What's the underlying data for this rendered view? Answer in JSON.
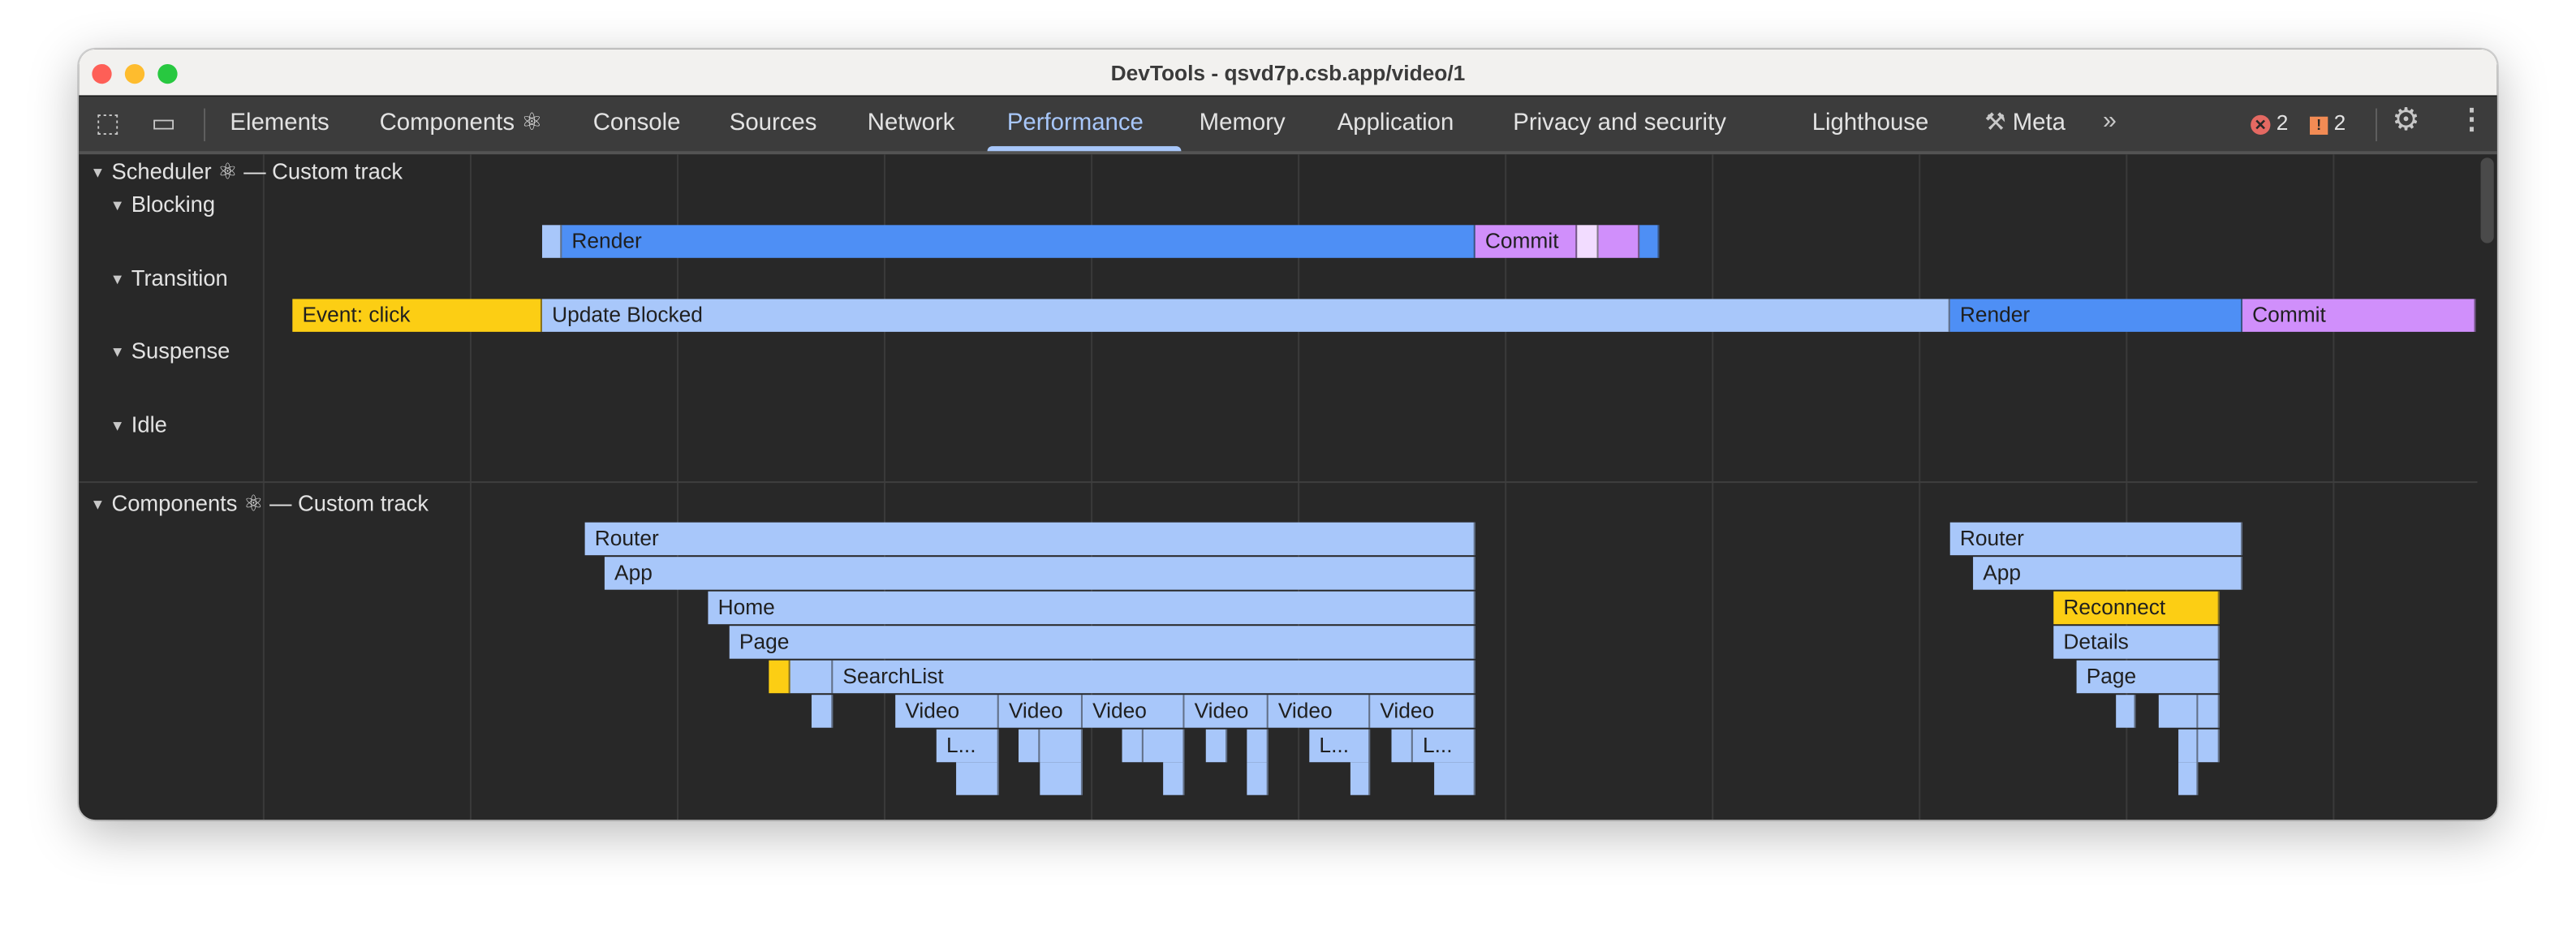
{
  "window": {
    "title": "DevTools - qsvd7p.csb.app/video/1"
  },
  "tabs": [
    {
      "label": "Elements"
    },
    {
      "label": "Components ⚛"
    },
    {
      "label": "Console"
    },
    {
      "label": "Sources"
    },
    {
      "label": "Network"
    },
    {
      "label": "Performance",
      "active": true
    },
    {
      "label": "Memory"
    },
    {
      "label": "Application"
    },
    {
      "label": "Privacy and security"
    },
    {
      "label": "Lighthouse"
    },
    {
      "label": "Meta"
    }
  ],
  "toolbar": {
    "errors": "2",
    "warnings": "2",
    "more_tabs_icon": "chevron-double-right",
    "settings_icon": "gear",
    "menu_icon": "kebab"
  },
  "scheduler": {
    "title": "Scheduler ⚛ — Custom track",
    "lanes": [
      "Blocking",
      "Transition",
      "Suspense",
      "Idle"
    ],
    "labels": {
      "render": "Render",
      "commit": "Commit",
      "event_click": "Event: click",
      "update_blocked": "Update Blocked"
    }
  },
  "components": {
    "title": "Components ⚛ — Custom track",
    "labels": {
      "router": "Router",
      "app": "App",
      "home": "Home",
      "page": "Page",
      "searchlist": "SearchList",
      "video": "Video",
      "ellipsis": "L...",
      "reconnect": "Reconnect",
      "details": "Details"
    }
  },
  "colors": {
    "render": "#4e8ff5",
    "commit": "#d08ffb",
    "commit_light": "#f2dcff",
    "component": "#a8c7fa",
    "event": "#fcce14",
    "active_tab": "#a8c7fa",
    "error": "#e46962",
    "warning": "#f28b54"
  }
}
